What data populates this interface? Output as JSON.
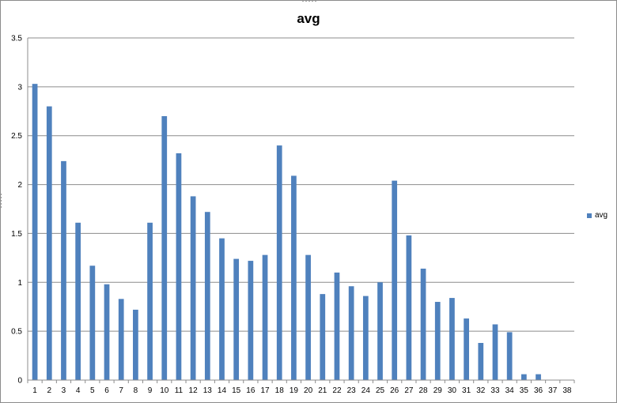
{
  "chart_data": {
    "type": "bar",
    "title": "avg",
    "xlabel": "",
    "ylabel": "",
    "ylim": [
      0,
      3.5
    ],
    "yticks": [
      "0",
      "0.5",
      "1",
      "1.5",
      "2",
      "2.5",
      "3",
      "3.5"
    ],
    "categories": [
      "1",
      "2",
      "3",
      "4",
      "5",
      "6",
      "7",
      "8",
      "9",
      "10",
      "11",
      "12",
      "13",
      "14",
      "15",
      "16",
      "17",
      "18",
      "19",
      "20",
      "21",
      "22",
      "23",
      "24",
      "25",
      "26",
      "27",
      "28",
      "29",
      "30",
      "31",
      "32",
      "33",
      "34",
      "35",
      "36",
      "37",
      "38"
    ],
    "series": [
      {
        "name": "avg",
        "color": "#4f81bd",
        "values": [
          3.03,
          2.8,
          2.24,
          1.61,
          1.17,
          0.98,
          0.83,
          0.72,
          1.61,
          2.7,
          2.32,
          1.88,
          1.72,
          1.45,
          1.24,
          1.22,
          1.28,
          2.4,
          2.09,
          1.28,
          0.88,
          1.1,
          0.96,
          0.86,
          1.0,
          2.04,
          1.48,
          1.14,
          0.8,
          0.84,
          0.63,
          0.38,
          0.57,
          0.49,
          0.06,
          0.06,
          0,
          0
        ]
      }
    ],
    "grid": true,
    "legend": "right"
  }
}
